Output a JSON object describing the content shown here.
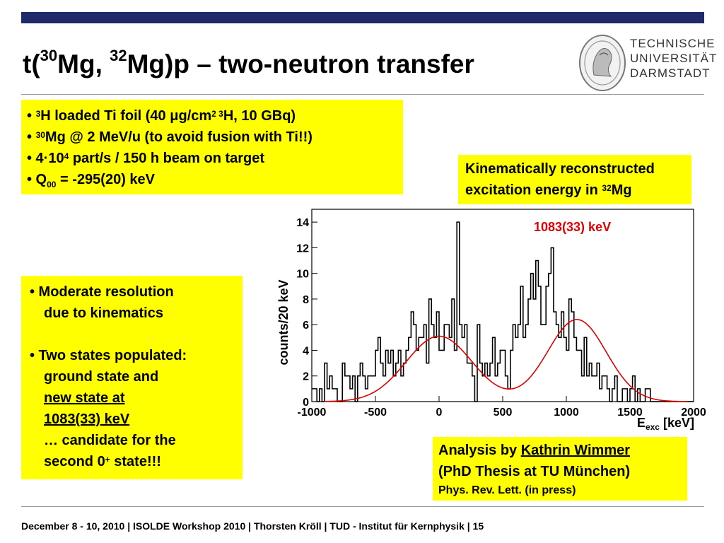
{
  "title": {
    "part1": "t(",
    "sup1": "30",
    "part2": "Mg, ",
    "sup2": "32",
    "part3": "Mg)p – two-neutron transfer"
  },
  "logo": {
    "line1": "TECHNISCHE",
    "line2": "UNIVERSITÄT",
    "line3": "DARMSTADT"
  },
  "box1": {
    "l1_bullet": "• ",
    "l1_sup": "3",
    "l1_text": "H loaded Ti foil (40 μg/cm",
    "l1_sup2": "2",
    "l1_sup3": " 3",
    "l1_end": "H, 10 GBq)",
    "l2_bullet": "• ",
    "l2_sup": "30",
    "l2_text": "Mg @ 2 MeV/u (to avoid fusion with Ti!!)",
    "l3_text": "• 4·10",
    "l3_sup": "4",
    "l3_end": " part/s / 150 h beam on target",
    "l4_text": "• Q",
    "l4_sub": "00",
    "l4_end": " = -295(20) keV"
  },
  "box2": {
    "line1": "Kinematically reconstructed",
    "line2": "excitation energy in ",
    "sup": "32",
    "line2_end": "Mg"
  },
  "box3": {
    "b1_l1": "•  Moderate resolution",
    "b1_l2": "due to kinematics",
    "b2_l1": "•  Two states populated:",
    "b2_l2": "ground state and",
    "b2_l3": "new state at ",
    "b2_l4": "1083(33) keV",
    "b2_l5": "… candidate for the",
    "b2_l6a": "second 0",
    "b2_l6sup": "+",
    "b2_l6b": " state!!!"
  },
  "box4": {
    "line1_pre": "Analysis by ",
    "line1_name": "Kathrin Wimmer",
    "line2": "(PhD Thesis at TU München)",
    "line3": "Phys. Rev. Lett.  (in press)"
  },
  "footer": "December 8 - 10, 2010  |  ISOLDE Workshop 2010  | Thorsten Kröll | TUD - Institut für Kernphysik  |  15",
  "chart_data": {
    "type": "histogram",
    "ylabel": "counts/20 keV",
    "xlabel_main": "E",
    "xlabel_sub": "exc",
    "xlabel_unit": " [keV]",
    "annotation": "1083(33) keV",
    "xlim": [
      -1000,
      2000
    ],
    "ylim": [
      0,
      15
    ],
    "xticks": [
      -1000,
      -500,
      0,
      500,
      1000,
      1500,
      2000
    ],
    "yticks": [
      0,
      2,
      4,
      6,
      8,
      10,
      12,
      14
    ],
    "bin_width": 20,
    "bin_start": -1000,
    "counts": [
      1,
      1,
      0,
      1,
      0,
      3,
      1,
      2,
      1,
      1,
      0,
      0,
      3,
      2,
      2,
      1,
      2,
      0,
      2,
      3,
      2,
      1,
      2,
      2,
      2,
      4,
      5,
      3,
      2,
      4,
      3,
      4,
      2,
      3,
      4,
      2,
      3,
      4,
      5,
      7,
      6,
      4,
      5,
      5,
      6,
      3,
      8,
      6,
      5,
      7,
      4,
      4,
      6,
      6,
      5,
      8,
      4,
      14,
      6,
      5,
      6,
      3,
      3,
      2,
      0,
      6,
      3,
      2,
      3,
      2,
      3,
      5,
      2,
      3,
      4,
      4,
      2,
      1,
      4,
      6,
      5,
      6,
      9,
      5,
      6,
      8,
      10,
      8,
      11,
      9,
      6,
      6,
      9,
      10,
      12,
      7,
      6,
      5,
      7,
      5,
      4,
      8,
      7,
      5,
      4,
      4,
      2,
      5,
      2,
      3,
      2,
      2,
      3,
      1,
      2,
      2,
      1,
      0,
      1,
      2,
      0,
      0,
      1,
      1,
      0,
      1,
      2,
      0,
      1,
      0,
      0,
      1,
      1,
      0,
      0,
      0,
      0,
      0,
      0,
      0,
      0,
      0,
      0,
      0,
      0,
      0,
      0,
      0,
      0,
      0
    ],
    "fit": {
      "color": "#e00000",
      "peaks": [
        {
          "center": 0,
          "amplitude": 5.1,
          "sigma": 260
        },
        {
          "center": 1083,
          "amplitude": 6.4,
          "sigma": 230
        }
      ],
      "range": [
        -900,
        1950
      ]
    },
    "colors": {
      "histogram": "#000000",
      "annotation": "#e00000"
    }
  }
}
